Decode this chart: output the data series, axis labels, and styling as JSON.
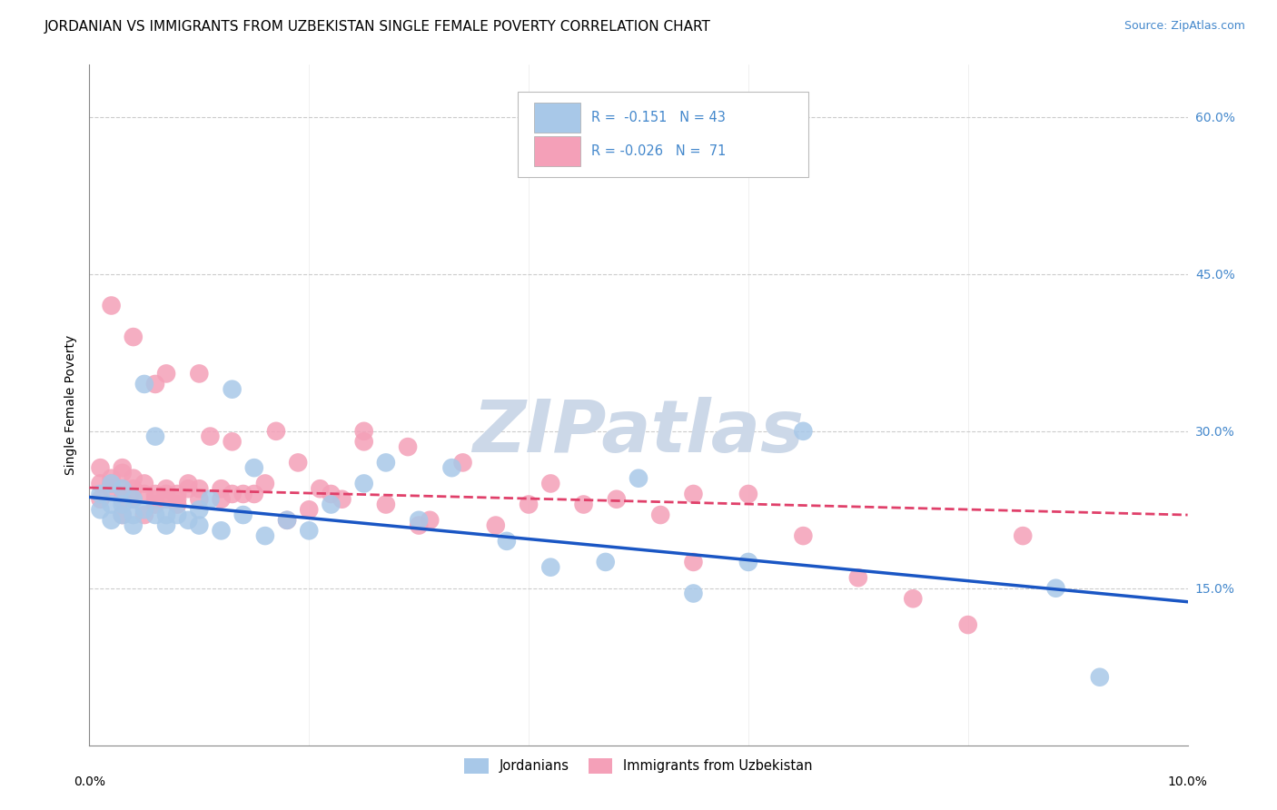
{
  "title": "JORDANIAN VS IMMIGRANTS FROM UZBEKISTAN SINGLE FEMALE POVERTY CORRELATION CHART",
  "source": "Source: ZipAtlas.com",
  "ylabel": "Single Female Poverty",
  "xlim": [
    0.0,
    0.1
  ],
  "ylim": [
    0.0,
    0.65
  ],
  "yticks": [
    0.15,
    0.3,
    0.45,
    0.6
  ],
  "ytick_labels": [
    "15.0%",
    "30.0%",
    "45.0%",
    "60.0%"
  ],
  "xtick_labels": [
    "0.0%",
    "10.0%"
  ],
  "legend_labels": [
    "Jordanians",
    "Immigrants from Uzbekistan"
  ],
  "scatter_color_jordan": "#a8c8e8",
  "scatter_color_uzbek": "#f4a0b8",
  "line_color_jordan": "#1a56c4",
  "line_color_uzbek": "#e0406a",
  "watermark_text": "ZIPatlas",
  "watermark_color": "#ccd8e8",
  "background_color": "#ffffff",
  "grid_color": "#cccccc",
  "title_fontsize": 11,
  "tick_fontsize": 10,
  "label_fontsize": 10,
  "jordan_x": [
    0.001,
    0.001,
    0.002,
    0.002,
    0.002,
    0.003,
    0.003,
    0.003,
    0.004,
    0.004,
    0.004,
    0.005,
    0.005,
    0.006,
    0.006,
    0.007,
    0.007,
    0.008,
    0.009,
    0.01,
    0.01,
    0.011,
    0.012,
    0.013,
    0.014,
    0.015,
    0.016,
    0.018,
    0.02,
    0.022,
    0.025,
    0.027,
    0.03,
    0.033,
    0.038,
    0.042,
    0.047,
    0.05,
    0.055,
    0.06,
    0.065,
    0.088,
    0.092
  ],
  "jordan_y": [
    0.24,
    0.225,
    0.25,
    0.23,
    0.215,
    0.23,
    0.245,
    0.22,
    0.235,
    0.22,
    0.21,
    0.345,
    0.225,
    0.295,
    0.22,
    0.22,
    0.21,
    0.22,
    0.215,
    0.225,
    0.21,
    0.235,
    0.205,
    0.34,
    0.22,
    0.265,
    0.2,
    0.215,
    0.205,
    0.23,
    0.25,
    0.27,
    0.215,
    0.265,
    0.195,
    0.17,
    0.175,
    0.255,
    0.145,
    0.175,
    0.3,
    0.15,
    0.065
  ],
  "uzbek_x": [
    0.001,
    0.001,
    0.001,
    0.002,
    0.002,
    0.002,
    0.002,
    0.003,
    0.003,
    0.003,
    0.003,
    0.003,
    0.004,
    0.004,
    0.004,
    0.004,
    0.005,
    0.005,
    0.005,
    0.006,
    0.006,
    0.006,
    0.006,
    0.007,
    0.007,
    0.007,
    0.007,
    0.008,
    0.008,
    0.008,
    0.009,
    0.009,
    0.01,
    0.01,
    0.01,
    0.011,
    0.012,
    0.012,
    0.013,
    0.013,
    0.014,
    0.015,
    0.016,
    0.017,
    0.018,
    0.019,
    0.02,
    0.021,
    0.022,
    0.023,
    0.025,
    0.027,
    0.029,
    0.031,
    0.034,
    0.037,
    0.04,
    0.042,
    0.045,
    0.048,
    0.052,
    0.055,
    0.06,
    0.065,
    0.07,
    0.075,
    0.08,
    0.085,
    0.055,
    0.03,
    0.025
  ],
  "uzbek_y": [
    0.265,
    0.25,
    0.235,
    0.25,
    0.255,
    0.245,
    0.42,
    0.265,
    0.245,
    0.26,
    0.235,
    0.22,
    0.245,
    0.235,
    0.39,
    0.255,
    0.25,
    0.24,
    0.22,
    0.345,
    0.24,
    0.235,
    0.23,
    0.355,
    0.245,
    0.24,
    0.235,
    0.24,
    0.235,
    0.23,
    0.25,
    0.245,
    0.355,
    0.245,
    0.235,
    0.295,
    0.245,
    0.235,
    0.24,
    0.29,
    0.24,
    0.24,
    0.25,
    0.3,
    0.215,
    0.27,
    0.225,
    0.245,
    0.24,
    0.235,
    0.3,
    0.23,
    0.285,
    0.215,
    0.27,
    0.21,
    0.23,
    0.25,
    0.23,
    0.235,
    0.22,
    0.175,
    0.24,
    0.2,
    0.16,
    0.14,
    0.115,
    0.2,
    0.24,
    0.21,
    0.29
  ]
}
